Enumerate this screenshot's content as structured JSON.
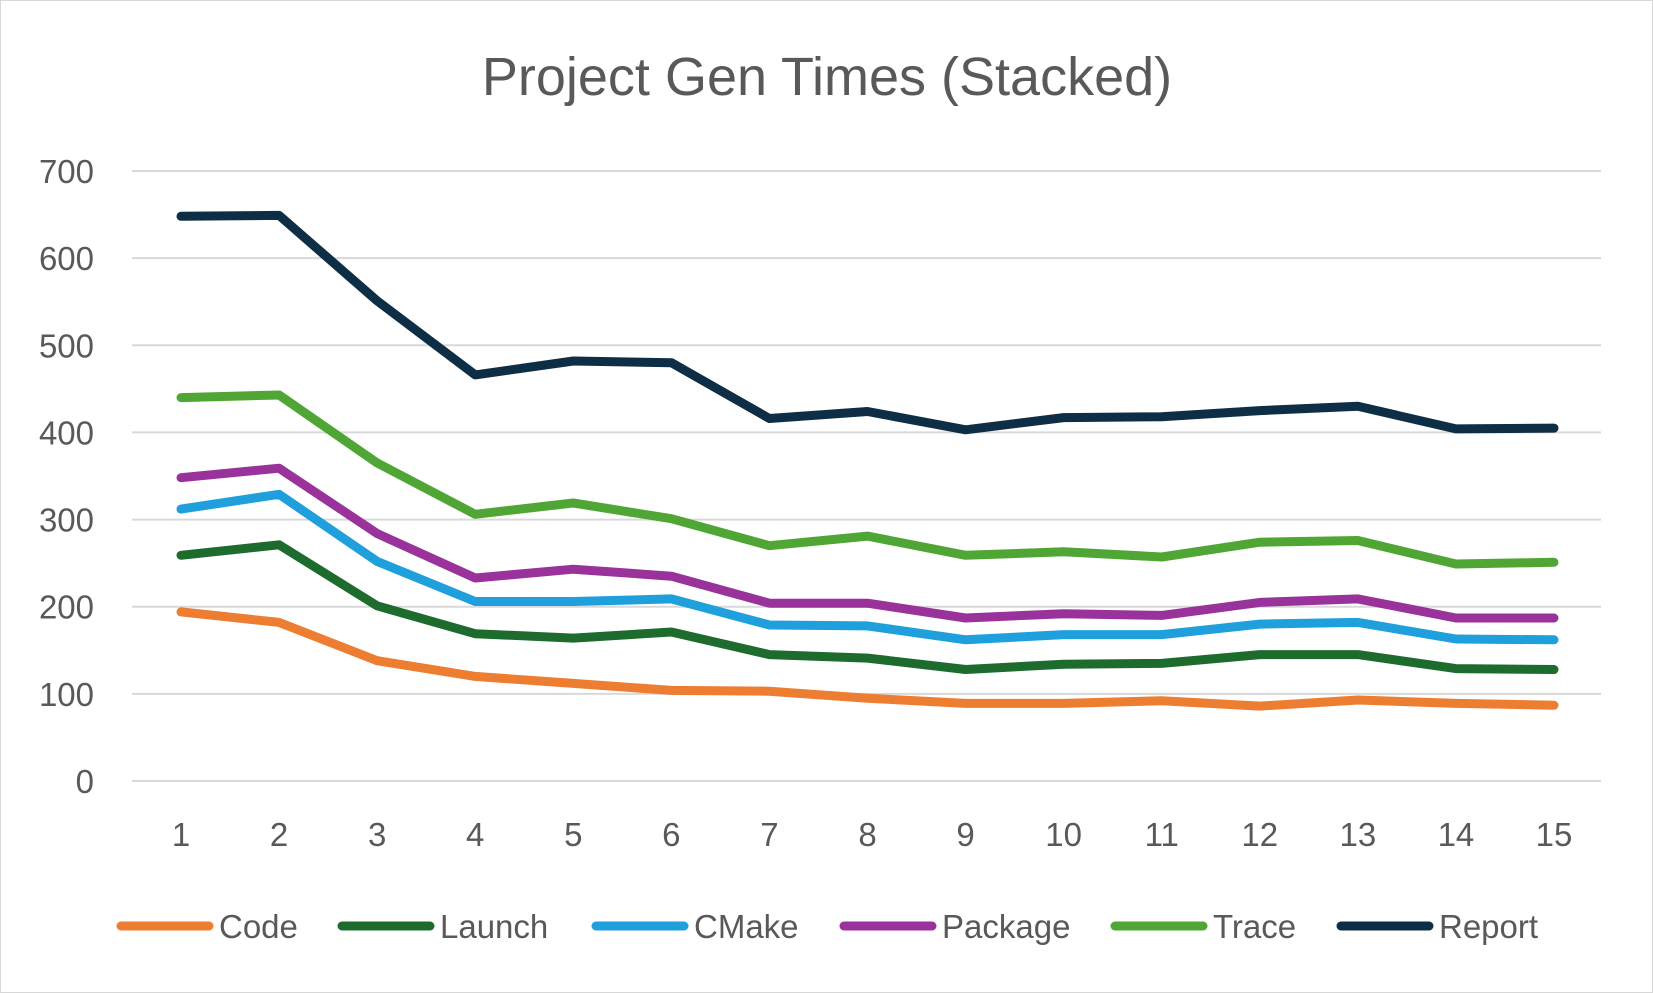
{
  "chart_data": {
    "type": "line",
    "title": "Project Gen Times (Stacked)",
    "xlabel": "",
    "ylabel": "",
    "x": [
      "1",
      "2",
      "3",
      "4",
      "5",
      "6",
      "7",
      "8",
      "9",
      "10",
      "11",
      "12",
      "13",
      "14",
      "15"
    ],
    "y_ticks": [
      "0",
      "100",
      "200",
      "300",
      "400",
      "500",
      "600",
      "700"
    ],
    "ylim": [
      0,
      700
    ],
    "grid": true,
    "legend_position": "bottom",
    "series": [
      {
        "name": "Code",
        "color": "#ED7D31",
        "values": [
          194,
          182,
          138,
          120,
          112,
          104,
          103,
          95,
          89,
          89,
          92,
          86,
          93,
          89,
          87
        ]
      },
      {
        "name": "Launch",
        "color": "#1E6B2E",
        "values": [
          259,
          271,
          201,
          169,
          164,
          171,
          145,
          141,
          128,
          134,
          135,
          145,
          145,
          129,
          128
        ]
      },
      {
        "name": "CMake",
        "color": "#1FA0DC",
        "values": [
          312,
          329,
          252,
          206,
          206,
          209,
          179,
          178,
          162,
          168,
          168,
          180,
          182,
          163,
          162
        ]
      },
      {
        "name": "Package",
        "color": "#99329A",
        "values": [
          348,
          359,
          284,
          233,
          243,
          235,
          204,
          204,
          187,
          192,
          190,
          205,
          209,
          187,
          187
        ]
      },
      {
        "name": "Trace",
        "color": "#4FA635",
        "values": [
          440,
          443,
          365,
          306,
          319,
          301,
          270,
          281,
          259,
          263,
          257,
          274,
          276,
          249,
          251
        ]
      },
      {
        "name": "Report",
        "color": "#0D2E45",
        "values": [
          648,
          649,
          551,
          466,
          482,
          480,
          416,
          424,
          403,
          417,
          418,
          425,
          430,
          404,
          405
        ]
      }
    ]
  }
}
